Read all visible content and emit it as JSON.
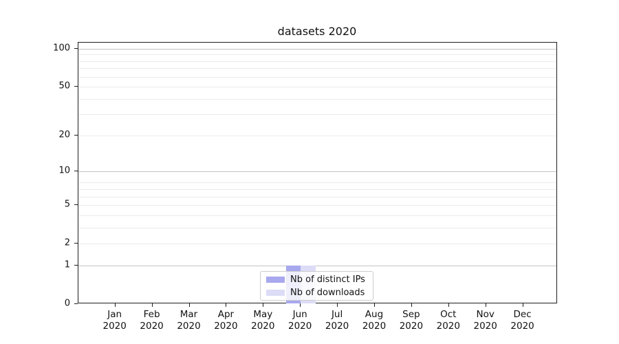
{
  "chart_data": {
    "type": "bar",
    "title": "datasets 2020",
    "categories": [
      "Jan 2020",
      "Feb 2020",
      "Mar 2020",
      "Apr 2020",
      "May 2020",
      "Jun 2020",
      "Jul 2020",
      "Aug 2020",
      "Sep 2020",
      "Oct 2020",
      "Nov 2020",
      "Dec 2020"
    ],
    "x_tick_labels": [
      {
        "month": "Jan",
        "year": "2020"
      },
      {
        "month": "Feb",
        "year": "2020"
      },
      {
        "month": "Mar",
        "year": "2020"
      },
      {
        "month": "Apr",
        "year": "2020"
      },
      {
        "month": "May",
        "year": "2020"
      },
      {
        "month": "Jun",
        "year": "2020"
      },
      {
        "month": "Jul",
        "year": "2020"
      },
      {
        "month": "Aug",
        "year": "2020"
      },
      {
        "month": "Sep",
        "year": "2020"
      },
      {
        "month": "Oct",
        "year": "2020"
      },
      {
        "month": "Nov",
        "year": "2020"
      },
      {
        "month": "Dec",
        "year": "2020"
      }
    ],
    "series": [
      {
        "name": "Nb of distinct IPs",
        "color": "#a8a8ef",
        "values": [
          0,
          0,
          0,
          0,
          0,
          1,
          0,
          0,
          0,
          0,
          0,
          0
        ]
      },
      {
        "name": "Nb of downloads",
        "color": "#dcdcf7",
        "values": [
          0,
          0,
          0,
          0,
          0,
          1,
          0,
          0,
          0,
          0,
          0,
          0
        ]
      }
    ],
    "yscale": "log1p",
    "ylim": [
      0,
      111
    ],
    "ytick_values": [
      0,
      1,
      2,
      5,
      10,
      20,
      50,
      100
    ],
    "ytick_labels": [
      "0",
      "1",
      "2",
      "5",
      "10",
      "20",
      "50",
      "100"
    ],
    "major_gridline_values": [
      1,
      10,
      100
    ],
    "minor_gridline_values": [
      2,
      3,
      4,
      5,
      6,
      7,
      8,
      20,
      30,
      40,
      50,
      60,
      70,
      80,
      90
    ],
    "grid": true,
    "legend_position": "lower center inside",
    "colors": {
      "axis": "#1c1c1c",
      "major_gridline": "#c3c3c3",
      "minor_gridline": "#ebebeb",
      "background": "#ffffff"
    }
  }
}
